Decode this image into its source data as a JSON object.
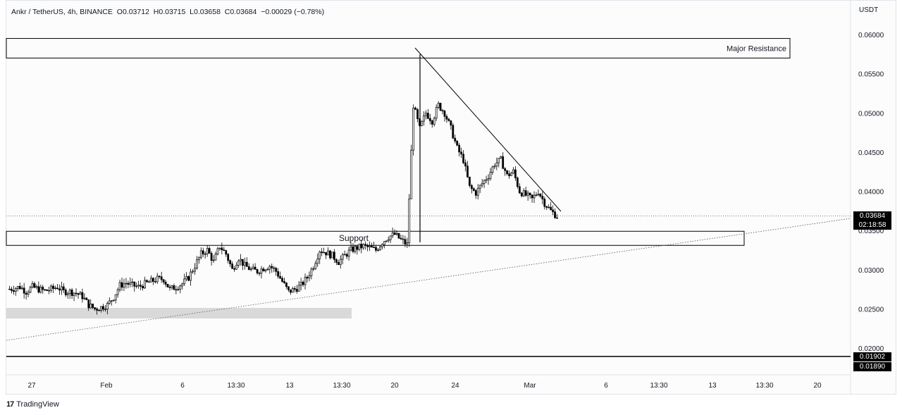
{
  "header": {
    "symbol": "Ankr / TetherUS, 4h, BINANCE",
    "open": "O0.03712",
    "high": "H0.03715",
    "low": "L0.03658",
    "close": "C0.03684",
    "change": "−0.00029 (−0.78%)"
  },
  "axis": {
    "unit": "USDT"
  },
  "price_tags": {
    "last_price": "0.03684",
    "countdown": "02:18:58",
    "level_1": "0.01902",
    "level_2": "0.01890"
  },
  "annotations": {
    "resistance_label": "Major Resistance",
    "support_label": "Support"
  },
  "brand": {
    "logo": "17",
    "name": "TradingView"
  },
  "colors": {
    "candle": "#000000",
    "background": "#fcfcfc",
    "support_zone": "#d9d9d9"
  },
  "chart_data": {
    "type": "candlestick",
    "title": "Ankr / TetherUS, 4h, BINANCE",
    "ylabel": "USDT",
    "ylim": [
      0.0166,
      0.0638
    ],
    "y_ticks": [
      "0.06000",
      "0.05500",
      "0.05000",
      "0.04500",
      "0.04000",
      "0.03500",
      "0.03000",
      "0.02500",
      "0.02000"
    ],
    "x_ticks": [
      "27",
      "Feb",
      "6",
      "13:30",
      "13",
      "13:30",
      "20",
      "24",
      "Mar",
      "6",
      "13:30",
      "13",
      "13:30",
      "20"
    ],
    "close_path": [
      0.0275,
      0.0276,
      0.0278,
      0.0272,
      0.0278,
      0.0275,
      0.0273,
      0.0275,
      0.0278,
      0.0272,
      0.0272,
      0.027,
      0.0266,
      0.0255,
      0.025,
      0.0252,
      0.0255,
      0.0265,
      0.028,
      0.0283,
      0.028,
      0.0278,
      0.0282,
      0.0285,
      0.0288,
      0.0288,
      0.0275,
      0.0278,
      0.0282,
      0.029,
      0.0305,
      0.032,
      0.0325,
      0.031,
      0.033,
      0.032,
      0.03,
      0.0315,
      0.0305,
      0.03,
      0.0298,
      0.0302,
      0.0305,
      0.0298,
      0.0285,
      0.0272,
      0.0275,
      0.028,
      0.029,
      0.0305,
      0.0325,
      0.0322,
      0.0318,
      0.031,
      0.0318,
      0.0325,
      0.0328,
      0.033,
      0.0328,
      0.0325,
      0.0335,
      0.0342,
      0.0345,
      0.0338,
      0.0332,
      0.051,
      0.048,
      0.05,
      0.049,
      0.051,
      0.05,
      0.048,
      0.0455,
      0.044,
      0.0405,
      0.0398,
      0.041,
      0.042,
      0.0435,
      0.044,
      0.042,
      0.0425,
      0.04,
      0.0395,
      0.039,
      0.04,
      0.0385,
      0.0375,
      0.0368
    ],
    "last_close": 0.03684,
    "horizontal_levels": [
      0.01902,
      0.0189
    ],
    "zones": [
      {
        "name": "Major Resistance",
        "low": 0.057,
        "high": 0.0595
      },
      {
        "name": "Support",
        "low": 0.0331,
        "high": 0.0349
      }
    ],
    "grid": false
  }
}
